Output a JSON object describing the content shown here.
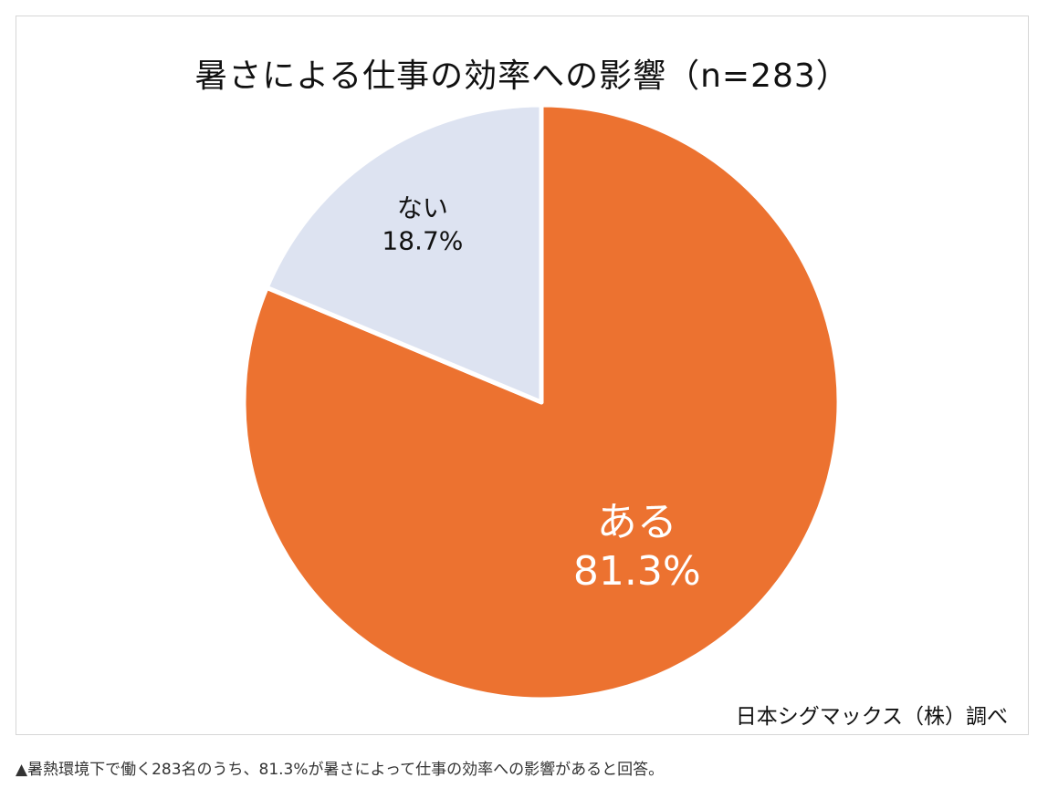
{
  "colors": {
    "aru": "#ec7230",
    "nai": "#dde3f1",
    "separator": "#ffffff"
  },
  "chart_data": {
    "type": "pie",
    "title": "暑さによる仕事の効率への影響（n=283）",
    "slices": [
      {
        "label": "ある",
        "value": 81.3,
        "value_label": "81.3%",
        "color": "#ec7230"
      },
      {
        "label": "ない",
        "value": 18.7,
        "value_label": "18.7%",
        "color": "#dde3f1"
      }
    ],
    "start": "12 o'clock",
    "direction": "clockwise",
    "legend": "none"
  },
  "source": "日本シグマックス（株）調べ",
  "caption": "▲暑熱環境下で働く283名のうち、81.3%が暑さによって仕事の効率への影響があると回答。"
}
